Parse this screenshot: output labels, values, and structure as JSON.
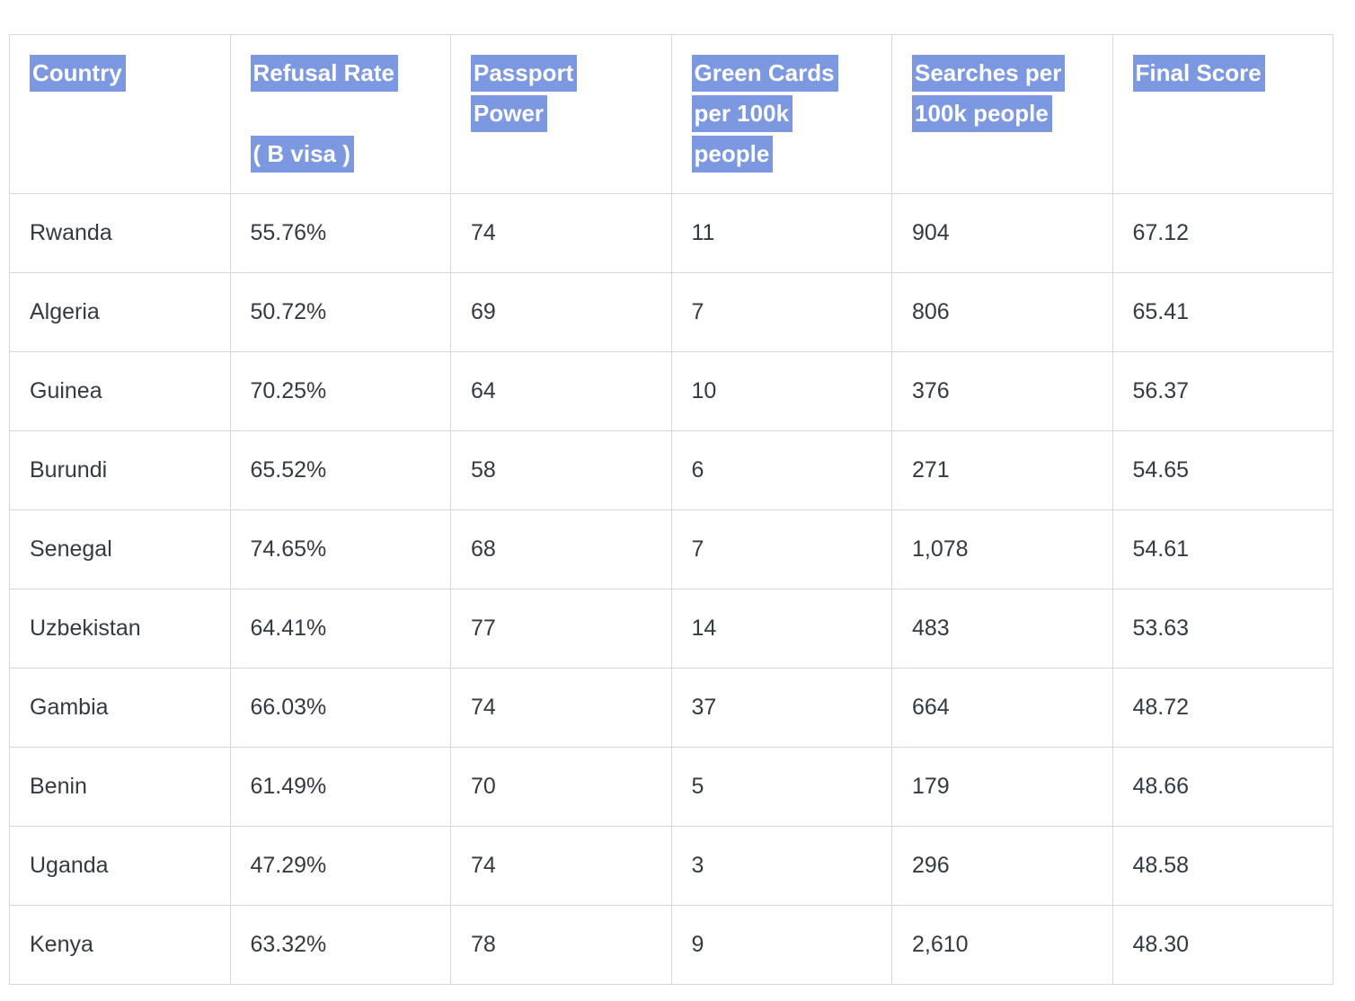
{
  "selection": {
    "highlight_color": "#7c98e0",
    "highlight_text_color": "#ffffff"
  },
  "table": {
    "columns": [
      {
        "key": "country",
        "label": "Country",
        "lines": [
          "Country"
        ]
      },
      {
        "key": "refusal_rate",
        "label": "Refusal Rate ( B visa )",
        "lines": [
          "Refusal Rate",
          "",
          "( B visa )"
        ]
      },
      {
        "key": "passport_power",
        "label": "Passport Power",
        "lines": [
          "Passport",
          "Power"
        ]
      },
      {
        "key": "green_cards_per_100k",
        "label": "Green Cards per 100k people",
        "lines": [
          "Green Cards",
          "per 100k",
          "people"
        ]
      },
      {
        "key": "searches_per_100k",
        "label": "Searches per 100k people",
        "lines": [
          "Searches per",
          "100k people"
        ]
      },
      {
        "key": "final_score",
        "label": "Final Score",
        "lines": [
          "Final Score"
        ]
      }
    ],
    "rows": [
      {
        "country": "Rwanda",
        "refusal_rate": "55.76%",
        "passport_power": "74",
        "green_cards_per_100k": "11",
        "searches_per_100k": "904",
        "final_score": "67.12"
      },
      {
        "country": "Algeria",
        "refusal_rate": "50.72%",
        "passport_power": "69",
        "green_cards_per_100k": "7",
        "searches_per_100k": "806",
        "final_score": "65.41"
      },
      {
        "country": "Guinea",
        "refusal_rate": "70.25%",
        "passport_power": "64",
        "green_cards_per_100k": "10",
        "searches_per_100k": "376",
        "final_score": "56.37"
      },
      {
        "country": "Burundi",
        "refusal_rate": "65.52%",
        "passport_power": "58",
        "green_cards_per_100k": "6",
        "searches_per_100k": "271",
        "final_score": "54.65"
      },
      {
        "country": "Senegal",
        "refusal_rate": "74.65%",
        "passport_power": "68",
        "green_cards_per_100k": "7",
        "searches_per_100k": "1,078",
        "final_score": "54.61"
      },
      {
        "country": "Uzbekistan",
        "refusal_rate": "64.41%",
        "passport_power": "77",
        "green_cards_per_100k": "14",
        "searches_per_100k": "483",
        "final_score": "53.63"
      },
      {
        "country": "Gambia",
        "refusal_rate": "66.03%",
        "passport_power": "74",
        "green_cards_per_100k": "37",
        "searches_per_100k": "664",
        "final_score": "48.72"
      },
      {
        "country": "Benin",
        "refusal_rate": "61.49%",
        "passport_power": "70",
        "green_cards_per_100k": "5",
        "searches_per_100k": "179",
        "final_score": "48.66"
      },
      {
        "country": "Uganda",
        "refusal_rate": "47.29%",
        "passport_power": "74",
        "green_cards_per_100k": "3",
        "searches_per_100k": "296",
        "final_score": "48.58"
      },
      {
        "country": "Kenya",
        "refusal_rate": "63.32%",
        "passport_power": "78",
        "green_cards_per_100k": "9",
        "searches_per_100k": "2,610",
        "final_score": "48.30"
      }
    ]
  }
}
